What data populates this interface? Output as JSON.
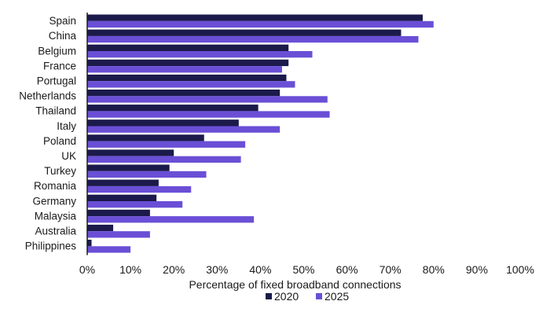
{
  "chart_data": {
    "type": "bar",
    "orientation": "horizontal",
    "categories": [
      "Spain",
      "China",
      "Belgium",
      "France",
      "Portugal",
      "Netherlands",
      "Thailand",
      "Italy",
      "Poland",
      "UK",
      "Turkey",
      "Romania",
      "Germany",
      "Malaysia",
      "Australia",
      "Philippines"
    ],
    "series": [
      {
        "name": "2020",
        "color": "#1b1a4b",
        "values": [
          77.5,
          72.5,
          46.5,
          46.5,
          46,
          44.5,
          39.5,
          35,
          27,
          20,
          19,
          16.5,
          16,
          14.5,
          6,
          1
        ]
      },
      {
        "name": "2025",
        "color": "#6a4fd6",
        "values": [
          80,
          76.5,
          52,
          45,
          48,
          55.5,
          56,
          44.5,
          36.5,
          35.5,
          27.5,
          24,
          22,
          38.5,
          14.5,
          10
        ]
      }
    ],
    "xlabel": "Percentage of fixed broadband connections",
    "xlim": [
      0,
      100
    ],
    "xticks": [
      "0%",
      "10%",
      "20%",
      "30%",
      "40%",
      "50%",
      "60%",
      "70%",
      "80%",
      "90%",
      "100%"
    ],
    "tick_values": [
      0,
      10,
      20,
      30,
      40,
      50,
      60,
      70,
      80,
      90,
      100
    ],
    "grid": false,
    "legend": {
      "placement": "bottom-center",
      "entries": [
        "2020",
        "2025"
      ]
    }
  }
}
